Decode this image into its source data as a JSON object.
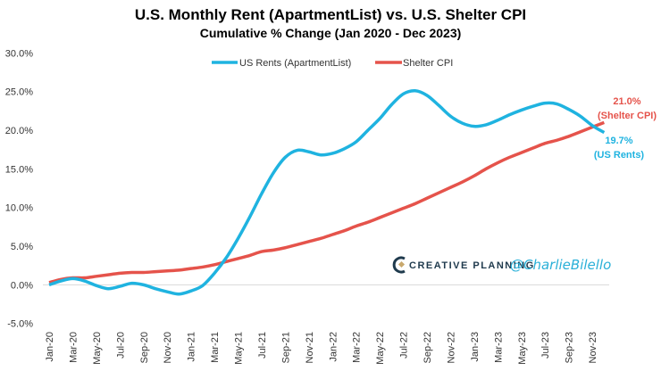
{
  "chart_data": {
    "type": "line",
    "title": "U.S. Monthly Rent (ApartmentList) vs. U.S. Shelter CPI",
    "subtitle": "Cumulative % Change (Jan 2020 - Dec 2023)",
    "xlabel": "",
    "ylabel": "",
    "ylim": [
      -5,
      30
    ],
    "yticks": [
      "-5.0%",
      "0.0%",
      "5.0%",
      "10.0%",
      "15.0%",
      "20.0%",
      "25.0%",
      "30.0%"
    ],
    "ytick_values": [
      -5,
      0,
      5,
      10,
      15,
      20,
      25,
      30
    ],
    "xtick_labels": [
      "Jan-20",
      "Mar-20",
      "May-20",
      "Jul-20",
      "Sep-20",
      "Nov-20",
      "Jan-21",
      "Mar-21",
      "May-21",
      "Jul-21",
      "Sep-21",
      "Nov-21",
      "Jan-22",
      "Mar-22",
      "May-22",
      "Jul-22",
      "Sep-22",
      "Nov-22",
      "Jan-23",
      "Mar-23",
      "May-23",
      "Jul-23",
      "Sep-23",
      "Nov-23"
    ],
    "x_start": "Jan-20",
    "x_end": "Dec-23",
    "grid": false,
    "legend_position": "top-center",
    "series": [
      {
        "name": "US Rents (ApartmentList)",
        "color": "#1fb3e0",
        "values": [
          0,
          0.5,
          0.8,
          0.5,
          -0.1,
          -0.5,
          -0.2,
          0.2,
          0.0,
          -0.5,
          -0.9,
          -1.2,
          -0.8,
          -0.1,
          1.5,
          3.5,
          6.0,
          8.8,
          11.8,
          14.5,
          16.5,
          17.4,
          17.2,
          16.8,
          17.0,
          17.6,
          18.5,
          20.0,
          21.5,
          23.3,
          24.7,
          25.1,
          24.5,
          23.2,
          21.8,
          20.9,
          20.5,
          20.7,
          21.3,
          22.0,
          22.6,
          23.1,
          23.5,
          23.4,
          22.7,
          21.8,
          20.6,
          19.7
        ]
      },
      {
        "name": "Shelter CPI",
        "color": "#e5534b",
        "values": [
          0.3,
          0.7,
          0.9,
          0.9,
          1.1,
          1.3,
          1.5,
          1.6,
          1.6,
          1.7,
          1.8,
          1.9,
          2.1,
          2.3,
          2.6,
          3.0,
          3.4,
          3.8,
          4.3,
          4.5,
          4.8,
          5.2,
          5.6,
          6.0,
          6.5,
          7.0,
          7.6,
          8.1,
          8.7,
          9.3,
          9.9,
          10.5,
          11.2,
          11.9,
          12.6,
          13.3,
          14.1,
          15.0,
          15.8,
          16.5,
          17.1,
          17.7,
          18.3,
          18.7,
          19.2,
          19.8,
          20.4,
          21.0
        ]
      }
    ],
    "annotations": [
      {
        "series": "Shelter CPI",
        "value_label": "21.0%",
        "label": "(Shelter CPI)",
        "color": "#e5534b"
      },
      {
        "series": "US Rents (ApartmentList)",
        "value_label": "19.7%",
        "label": "(US Rents)",
        "color": "#1fb3e0"
      }
    ]
  },
  "watermark": {
    "brand": "CREATIVE PLANNING",
    "handle": "@CharlieBilello"
  }
}
